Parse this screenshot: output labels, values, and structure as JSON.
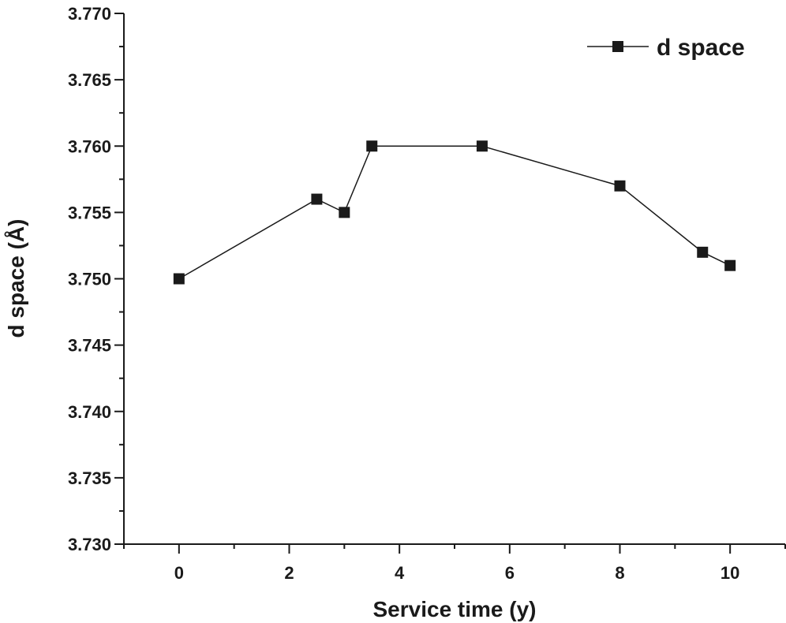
{
  "chart_data": {
    "type": "line",
    "title": "",
    "xlabel": "Service time (y)",
    "ylabel": "d space (Å)",
    "xlim": [
      -1,
      11
    ],
    "ylim": [
      3.73,
      3.77
    ],
    "x_ticks": [
      0,
      2,
      4,
      6,
      8,
      10
    ],
    "x_tick_labels": [
      "0",
      "2",
      "4",
      "6",
      "8",
      "10"
    ],
    "y_ticks": [
      3.73,
      3.735,
      3.74,
      3.745,
      3.75,
      3.755,
      3.76,
      3.765,
      3.77
    ],
    "y_tick_labels": [
      "3.730",
      "3.735",
      "3.740",
      "3.745",
      "3.750",
      "3.755",
      "3.760",
      "3.765",
      "3.770"
    ],
    "grid": false,
    "legend_position": "top-right",
    "series": [
      {
        "name": "d space",
        "color": "#1a1a1a",
        "marker": "square",
        "x": [
          0,
          2.5,
          3,
          3.5,
          5.5,
          8,
          9.5,
          10
        ],
        "y": [
          3.75,
          3.756,
          3.755,
          3.76,
          3.76,
          3.757,
          3.752,
          3.751
        ]
      }
    ]
  }
}
